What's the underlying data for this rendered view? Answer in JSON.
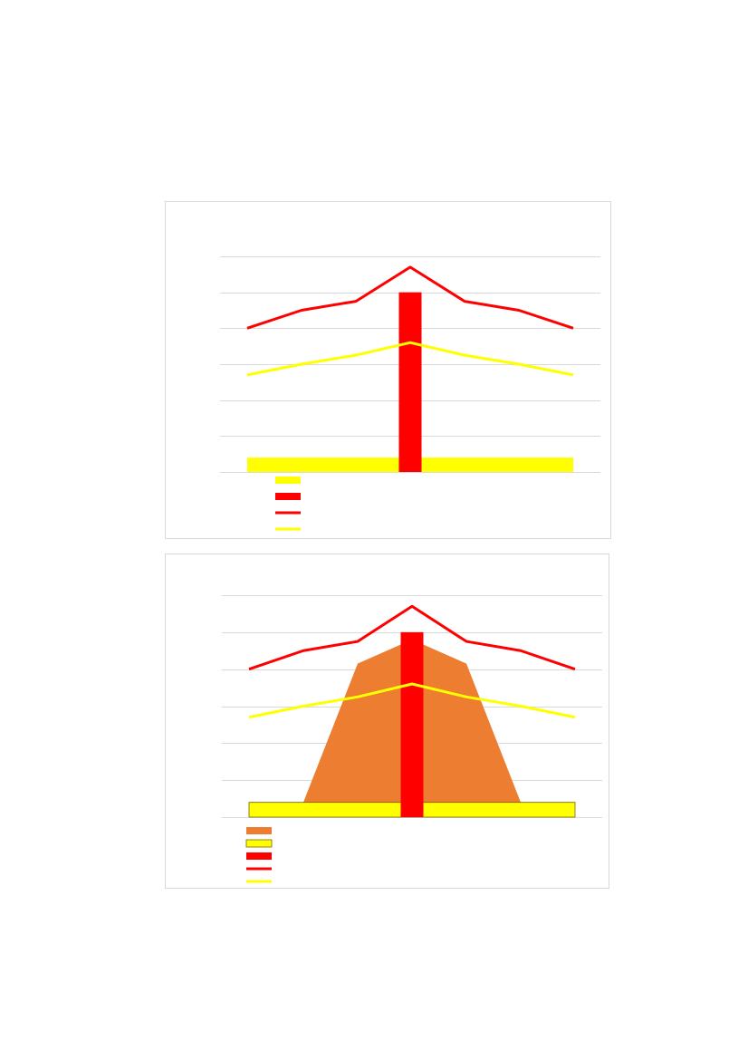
{
  "chart_data": [
    {
      "type": "combo",
      "categories": [
        null,
        null,
        null,
        null,
        null,
        null,
        null
      ],
      "ylim": [
        0,
        6
      ],
      "yticks": [
        0,
        1,
        2,
        3,
        4,
        5,
        6
      ],
      "grid": true,
      "series": [
        {
          "kind": "area",
          "color": "#ffff00",
          "values": [
            0.4,
            0.4,
            0.4,
            0.4,
            0.4,
            0.4,
            0.4
          ]
        },
        {
          "kind": "bar",
          "color": "#ff0000",
          "values": [
            null,
            null,
            null,
            5,
            null,
            null,
            null
          ]
        },
        {
          "kind": "line",
          "color": "#ff0000",
          "values": [
            4,
            4.5,
            4.75,
            5.7,
            4.75,
            4.5,
            4
          ]
        },
        {
          "kind": "line",
          "color": "#ffff00",
          "values": [
            2.7,
            3,
            3.25,
            3.6,
            3.25,
            3,
            2.7
          ]
        }
      ]
    },
    {
      "type": "combo",
      "categories": [
        null,
        null,
        null,
        null,
        null,
        null,
        null
      ],
      "ylim": [
        0,
        6
      ],
      "yticks": [
        0,
        1,
        2,
        3,
        4,
        5,
        6
      ],
      "grid": true,
      "series": [
        {
          "kind": "area",
          "color": "#ed7d31",
          "values": [
            0.4,
            0.4,
            4.15,
            4.8,
            4.15,
            0.4,
            0.4
          ]
        },
        {
          "kind": "area",
          "color": "#ffff00",
          "outline": "#7f6000",
          "values": [
            0.4,
            0.4,
            0.4,
            0.4,
            0.4,
            0.4,
            0.4
          ]
        },
        {
          "kind": "bar",
          "color": "#ff0000",
          "values": [
            null,
            null,
            null,
            5,
            null,
            null,
            null
          ]
        },
        {
          "kind": "line",
          "color": "#ff0000",
          "values": [
            4,
            4.5,
            4.75,
            5.7,
            4.75,
            4.5,
            4
          ]
        },
        {
          "kind": "line",
          "color": "#ffff00",
          "values": [
            2.7,
            3,
            3.25,
            3.6,
            3.25,
            3,
            2.7
          ]
        }
      ]
    }
  ]
}
